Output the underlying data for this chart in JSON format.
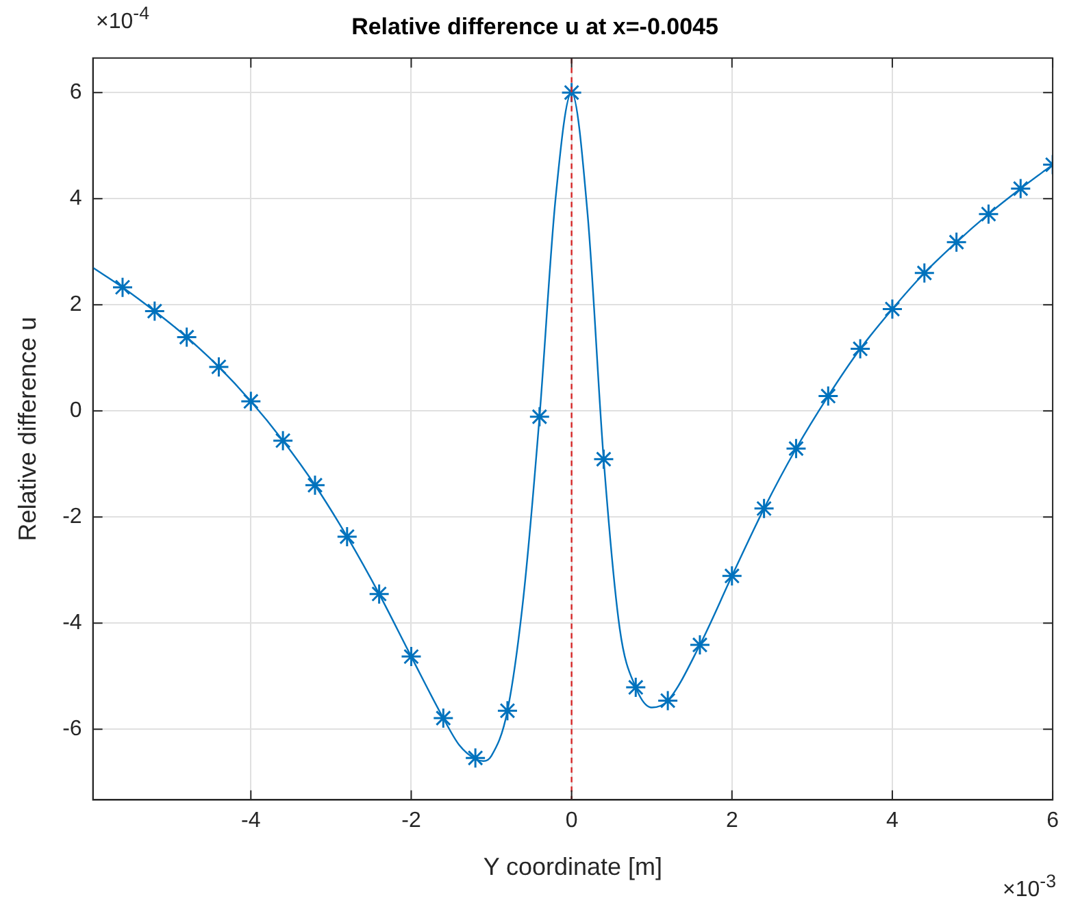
{
  "chart_data": {
    "type": "line",
    "title": "Relative difference u at x=-0.0045",
    "xlabel": "Y coordinate [m]",
    "ylabel": "Relative difference u",
    "annotations": [
      "×10$^{-4}$",
      "×10$^{-3}$"
    ],
    "xlim": [
      -5.97,
      6
    ],
    "ylim": [
      -7.33,
      6.65
    ],
    "xticks": [
      -4,
      -2,
      0,
      2,
      4,
      6
    ],
    "yticks": [
      -6,
      -4,
      -2,
      0,
      2,
      4,
      6
    ],
    "grid": true,
    "legend": false,
    "ref_lines": [
      {
        "axis": "x",
        "value": 0,
        "label": null,
        "color": "#d62728",
        "line_style": "dashed"
      }
    ],
    "series": [
      {
        "type": "line",
        "marker": "none",
        "line_style": "solid",
        "color": "#0072bd",
        "x": [
          -5.97,
          -5.6,
          -5.2,
          -4.8,
          -4.4,
          -4.0,
          -3.6,
          -3.2,
          -2.8,
          -2.4,
          -2.0,
          -1.6,
          -1.4,
          -1.2,
          -1.1,
          -1.0,
          -0.8,
          -0.6,
          -0.4,
          -0.2,
          0,
          0.2,
          0.4,
          0.6,
          0.8,
          1.0,
          1.2,
          1.6,
          2.0,
          2.4,
          2.8,
          3.2,
          3.6,
          4.0,
          4.4,
          4.8,
          5.2,
          5.6,
          6.0
        ],
        "values": [
          2.7,
          2.33,
          1.88,
          1.39,
          0.83,
          0.18,
          -0.56,
          -1.4,
          -2.37,
          -3.45,
          -4.63,
          -5.79,
          -6.3,
          -6.56,
          -6.6,
          -6.5,
          -5.65,
          -3.5,
          -0.11,
          4.0,
          6.0,
          3.7,
          -0.91,
          -4.1,
          -5.21,
          -5.59,
          -5.46,
          -4.41,
          -3.11,
          -1.84,
          -0.71,
          0.28,
          1.17,
          1.92,
          2.6,
          3.18,
          3.71,
          4.19,
          4.64
        ]
      },
      {
        "type": "scatter",
        "marker": "cross",
        "color": "#0072bd",
        "x": [
          -5.6,
          -5.2,
          -4.8,
          -4.4,
          -4.0,
          -3.6,
          -3.2,
          -2.8,
          -2.4,
          -2.0,
          -1.6,
          -1.2,
          -0.8,
          -0.4,
          0,
          0.4,
          0.8,
          1.2,
          1.6,
          2.0,
          2.4,
          2.8,
          3.2,
          3.6,
          4.0,
          4.4,
          4.8,
          5.2,
          5.6,
          6.0
        ],
        "values": [
          2.33,
          1.88,
          1.39,
          0.83,
          0.18,
          -0.56,
          -1.4,
          -2.37,
          -3.45,
          -4.63,
          -5.79,
          -6.54,
          -5.65,
          -0.11,
          6.0,
          -0.91,
          -5.21,
          -5.46,
          -4.41,
          -3.11,
          -1.84,
          -0.71,
          0.28,
          1.17,
          1.92,
          2.6,
          3.18,
          3.71,
          4.19,
          4.64
        ]
      }
    ]
  }
}
